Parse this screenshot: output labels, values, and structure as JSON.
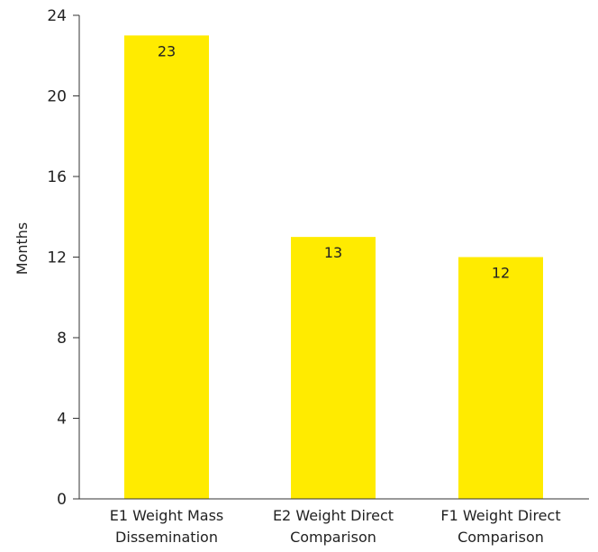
{
  "chart_data": {
    "type": "bar",
    "categories": [
      [
        "E1 Weight Mass",
        "Dissemination"
      ],
      [
        "E2 Weight Direct",
        "Comparison"
      ],
      [
        "F1 Weight Direct",
        "Comparison"
      ]
    ],
    "values": [
      23,
      13,
      12
    ],
    "data_labels": [
      "23",
      "13",
      "12"
    ],
    "title": "",
    "xlabel": "",
    "ylabel": "Months",
    "ylim": [
      0,
      24
    ],
    "yticks": [
      0,
      4,
      8,
      12,
      16,
      20,
      24
    ],
    "grid": false,
    "bar_color": "#FFEB00"
  }
}
